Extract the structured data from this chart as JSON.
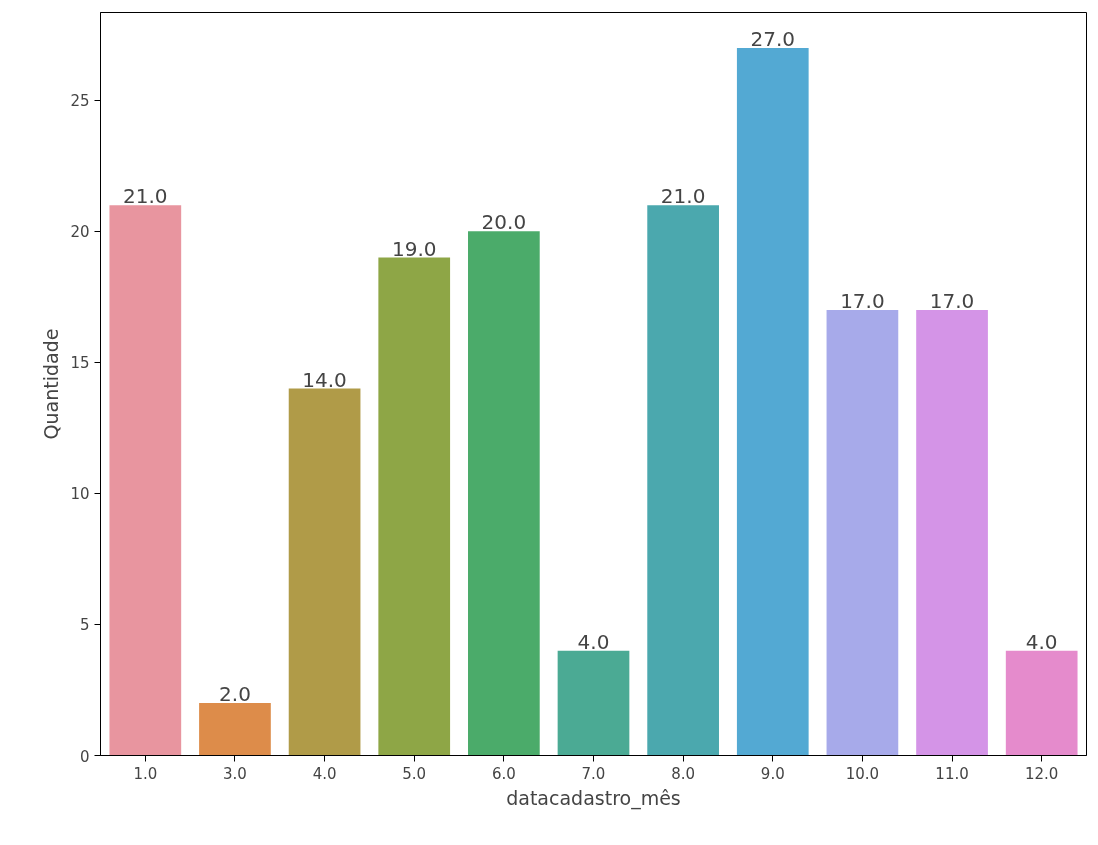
{
  "chart_data": {
    "type": "bar",
    "xlabel": "datacadastro_mês",
    "ylabel": "Quantidade",
    "categories": [
      "1.0",
      "3.0",
      "4.0",
      "5.0",
      "6.0",
      "7.0",
      "8.0",
      "9.0",
      "10.0",
      "11.0",
      "12.0"
    ],
    "values": [
      21,
      2,
      14,
      19,
      20,
      4,
      21,
      27,
      17,
      17,
      4
    ],
    "value_labels": [
      "21.0",
      "2.0",
      "14.0",
      "19.0",
      "20.0",
      "4.0",
      "21.0",
      "27.0",
      "17.0",
      "17.0",
      "4.0"
    ],
    "colors": [
      "#e8959f",
      "#dd8c4a",
      "#b09b48",
      "#8ea646",
      "#4bab6a",
      "#4baa94",
      "#4ba8ae",
      "#53a9d3",
      "#a7aaea",
      "#d494e7",
      "#e58bcc"
    ],
    "ylim": [
      0,
      28.35
    ],
    "yticks": [
      0,
      5,
      10,
      15,
      20,
      25
    ],
    "grid": false
  }
}
